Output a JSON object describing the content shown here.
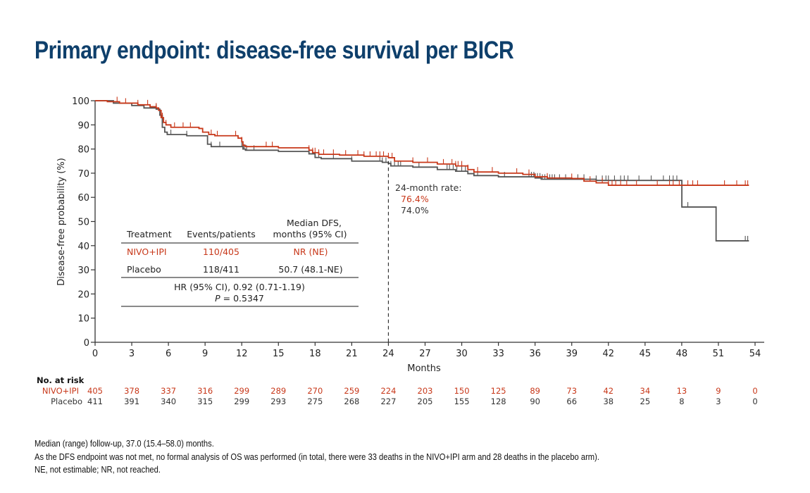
{
  "title": "Primary endpoint: disease-free survival per BICR",
  "colors": {
    "title": "#0e3f6b",
    "nivo_ipi": "#c8381a",
    "placebo": "#555555",
    "axis": "#333333"
  },
  "chart_data": {
    "type": "line",
    "subtype": "kaplan-meier",
    "xlabel": "Months",
    "ylabel": "Disease-free probability (%)",
    "xlim": [
      0,
      54
    ],
    "ylim": [
      0,
      100
    ],
    "xticks": [
      0,
      3,
      6,
      9,
      12,
      15,
      18,
      21,
      24,
      27,
      30,
      33,
      36,
      39,
      42,
      45,
      48,
      51,
      54
    ],
    "yticks": [
      0,
      10,
      20,
      30,
      40,
      50,
      60,
      70,
      80,
      90,
      100
    ],
    "grid": false,
    "reference_line": {
      "x": 24,
      "style": "dashed"
    },
    "series": [
      {
        "name": "NIVO+IPI",
        "color_key": "nivo_ipi",
        "steps": [
          [
            0,
            100
          ],
          [
            1,
            99.6
          ],
          [
            2,
            99
          ],
          [
            3.5,
            98.3
          ],
          [
            4.5,
            97.5
          ],
          [
            5,
            97
          ],
          [
            5.2,
            96
          ],
          [
            5.4,
            93
          ],
          [
            5.6,
            91
          ],
          [
            5.8,
            90
          ],
          [
            6.2,
            89
          ],
          [
            8.5,
            88.5
          ],
          [
            8.8,
            87
          ],
          [
            9.3,
            86
          ],
          [
            9.8,
            85.5
          ],
          [
            11.7,
            84.5
          ],
          [
            12,
            83
          ],
          [
            12.1,
            81.5
          ],
          [
            12.3,
            81
          ],
          [
            15,
            80.5
          ],
          [
            17.5,
            79.5
          ],
          [
            17.8,
            78.5
          ],
          [
            18.3,
            77.8
          ],
          [
            20,
            77.5
          ],
          [
            22,
            77
          ],
          [
            24,
            76.4
          ],
          [
            24.5,
            75
          ],
          [
            26,
            74.5
          ],
          [
            28,
            73.8
          ],
          [
            29.5,
            73
          ],
          [
            30.5,
            71.5
          ],
          [
            31,
            70.5
          ],
          [
            33,
            70
          ],
          [
            35,
            69.5
          ],
          [
            36,
            68.5
          ],
          [
            37,
            68
          ],
          [
            39,
            67.8
          ],
          [
            40,
            66.7
          ],
          [
            41,
            66
          ],
          [
            42,
            65
          ],
          [
            53.5,
            65
          ]
        ],
        "censor_months": [
          1.8,
          2.5,
          3.5,
          4.3,
          5,
          5.5,
          5.8,
          6.5,
          7.2,
          7.8,
          9.5,
          10,
          11.5,
          12,
          14,
          14.5,
          17.5,
          17.8,
          18,
          18.3,
          18.7,
          19.5,
          20.5,
          21.5,
          22,
          22.5,
          23,
          23.3,
          23.6,
          24,
          24.3,
          26,
          27.2,
          28.5,
          29.2,
          29.5,
          29.7,
          30,
          30.5,
          31.3,
          32.5,
          34.5,
          35.5,
          37,
          39,
          40.5,
          41.5,
          42,
          42.3,
          42.6,
          43,
          43.5,
          44.3,
          46,
          47,
          47.3,
          47.8,
          48.5,
          48.9,
          49.3,
          51.5,
          52.5,
          53.2,
          53.4
        ]
      },
      {
        "name": "Placebo",
        "color_key": "placebo",
        "steps": [
          [
            0,
            100
          ],
          [
            1.5,
            99
          ],
          [
            3,
            98
          ],
          [
            4,
            97
          ],
          [
            5,
            96.5
          ],
          [
            5.3,
            94
          ],
          [
            5.5,
            89
          ],
          [
            5.7,
            87
          ],
          [
            5.9,
            86
          ],
          [
            7.5,
            85.5
          ],
          [
            9.2,
            82
          ],
          [
            9.5,
            81
          ],
          [
            12.1,
            80
          ],
          [
            12.3,
            79.5
          ],
          [
            15,
            79
          ],
          [
            17.5,
            78
          ],
          [
            18,
            76.5
          ],
          [
            18.5,
            76
          ],
          [
            21,
            75
          ],
          [
            23.5,
            74.5
          ],
          [
            24,
            74
          ],
          [
            24.2,
            73
          ],
          [
            26,
            72.5
          ],
          [
            28,
            71.5
          ],
          [
            29.5,
            70.8
          ],
          [
            30.5,
            69.8
          ],
          [
            31,
            69
          ],
          [
            33,
            68.5
          ],
          [
            36,
            68
          ],
          [
            36.5,
            67.5
          ],
          [
            41,
            67
          ],
          [
            48,
            67
          ],
          [
            48.01,
            56
          ],
          [
            50.8,
            56
          ],
          [
            50.81,
            42
          ],
          [
            53.5,
            42
          ]
        ],
        "censor_months": [
          5,
          5.3,
          6.2,
          7.5,
          9.5,
          10.2,
          12,
          12.2,
          12.4,
          13,
          18.3,
          19.5,
          21,
          23.3,
          23.5,
          23.8,
          24.2,
          24.5,
          24.8,
          25,
          26.5,
          28.8,
          29,
          29.3,
          29.6,
          30,
          30.3,
          31,
          31.3,
          33.5,
          35.5,
          35.7,
          35.9,
          36,
          36.2,
          36.4,
          36.6,
          36.8,
          37,
          37.2,
          37.4,
          37.6,
          38,
          38.5,
          39.5,
          40,
          41,
          41.5,
          41.8,
          42,
          42.5,
          43,
          43.3,
          43.6,
          44.5,
          45.5,
          46.5,
          47,
          47.3,
          47.6,
          48.5,
          53.2,
          53.4
        ]
      }
    ],
    "annotation": {
      "label": "24-month rate:",
      "nivo_ipi": "76.4%",
      "placebo": "74.0%"
    },
    "summary_table": {
      "headers": [
        "Treatment",
        "Events/patients",
        "Median DFS, months (95% CI)"
      ],
      "header_line1": "Median DFS,",
      "header_line2": "months (95% CI)",
      "rows": [
        {
          "treatment": "NIVO+IPI",
          "events": "110/405",
          "median": "NR (NE)"
        },
        {
          "treatment": "Placebo",
          "events": "118/411",
          "median": "50.7 (48.1-NE)"
        }
      ],
      "hr_line": "HR (95% CI), 0.92 (0.71-1.19)",
      "p_label": "P",
      "p_value": " = 0.5347"
    },
    "at_risk": {
      "title": "No. at risk",
      "months": [
        0,
        3,
        6,
        9,
        12,
        15,
        18,
        21,
        24,
        27,
        30,
        33,
        36,
        39,
        42,
        45,
        48,
        51,
        54
      ],
      "rows": [
        {
          "label": "NIVO+IPI",
          "values": [
            405,
            378,
            337,
            316,
            299,
            289,
            270,
            259,
            224,
            203,
            150,
            125,
            89,
            73,
            42,
            34,
            13,
            9,
            0
          ]
        },
        {
          "label": "Placebo",
          "values": [
            411,
            391,
            340,
            315,
            299,
            293,
            275,
            268,
            227,
            205,
            155,
            128,
            90,
            66,
            38,
            25,
            8,
            3,
            0
          ]
        }
      ]
    }
  },
  "footnotes": [
    "Median (range) follow-up, 37.0 (15.4–58.0) months.",
    "As the DFS endpoint was not met, no formal analysis of OS was performed (in total, there were 33 deaths in the NIVO+IPI arm and 28 deaths in the placebo arm).",
    "NE, not estimable; NR, not reached."
  ]
}
